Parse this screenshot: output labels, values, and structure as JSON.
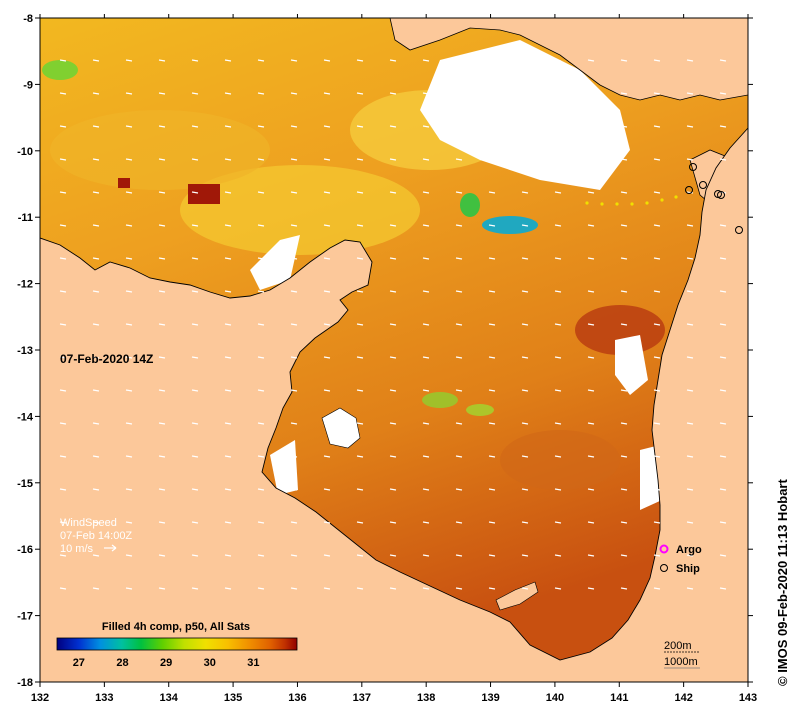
{
  "map": {
    "timestamp": "07-Feb-2020 14Z",
    "wind": {
      "title": "WindSpeed",
      "time": "07-Feb 14:00Z",
      "scale_label": "10 m/s"
    },
    "colorbar": {
      "title": "Filled 4h comp, p50, All Sats",
      "ticks": [
        "27",
        "28",
        "29",
        "30",
        "31"
      ],
      "range": [
        26.5,
        32.0
      ],
      "colors": [
        "#000080",
        "#0030d0",
        "#0090e0",
        "#00c0a0",
        "#00c040",
        "#60d000",
        "#c0e000",
        "#f0e000",
        "#f8c000",
        "#f09000",
        "#e06000",
        "#c03000",
        "#900000"
      ]
    },
    "legend": {
      "argo": "Argo",
      "ship": "Ship",
      "argo_color": "#ff00ff"
    },
    "contours": {
      "line1": "200m",
      "line2": "1000m"
    },
    "axes": {
      "lon_ticks": [
        "132",
        "133",
        "134",
        "135",
        "136",
        "137",
        "138",
        "139",
        "140",
        "141",
        "142",
        "143"
      ],
      "lat_ticks": [
        "-8",
        "-9",
        "-10",
        "-11",
        "-12",
        "-13",
        "-14",
        "-15",
        "-16",
        "-17",
        "-18"
      ],
      "lon_range": [
        132,
        143
      ],
      "lat_range": [
        -18,
        -8
      ]
    },
    "credit": "© IMOS 09-Feb-2020 11:13 Hobart",
    "land_color": "#fcc89a",
    "nodata_color": "#ffffff"
  }
}
